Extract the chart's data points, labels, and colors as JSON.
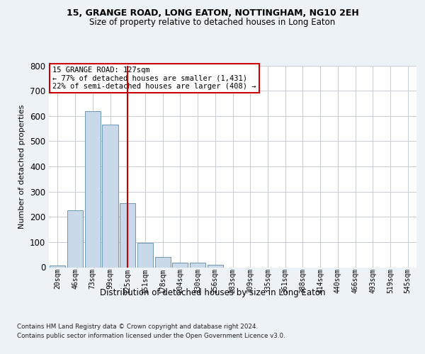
{
  "title1": "15, GRANGE ROAD, LONG EATON, NOTTINGHAM, NG10 2EH",
  "title2": "Size of property relative to detached houses in Long Eaton",
  "xlabel": "Distribution of detached houses by size in Long Eaton",
  "ylabel": "Number of detached properties",
  "categories": [
    "20sqm",
    "46sqm",
    "73sqm",
    "99sqm",
    "125sqm",
    "151sqm",
    "178sqm",
    "204sqm",
    "230sqm",
    "256sqm",
    "283sqm",
    "309sqm",
    "335sqm",
    "361sqm",
    "388sqm",
    "414sqm",
    "440sqm",
    "466sqm",
    "493sqm",
    "519sqm",
    "545sqm"
  ],
  "bar_heights": [
    8,
    225,
    620,
    565,
    253,
    96,
    42,
    18,
    18,
    10,
    0,
    0,
    0,
    0,
    0,
    0,
    0,
    0,
    0,
    0,
    0
  ],
  "bar_color": "#c9d9ea",
  "bar_edge_color": "#5a8aaa",
  "vline_color": "#cc0000",
  "property_idx": 4,
  "annotation_line1": "15 GRANGE ROAD: 127sqm",
  "annotation_line2": "← 77% of detached houses are smaller (1,431)",
  "annotation_line3": "22% of semi-detached houses are larger (408) →",
  "annotation_box_edge": "#cc0000",
  "ylim": [
    0,
    800
  ],
  "yticks": [
    0,
    100,
    200,
    300,
    400,
    500,
    600,
    700,
    800
  ],
  "grid_color": "#c8cdd4",
  "footer1": "Contains HM Land Registry data © Crown copyright and database right 2024.",
  "footer2": "Contains public sector information licensed under the Open Government Licence v3.0.",
  "fig_bg_color": "#edf2f7",
  "plot_bg_color": "#ffffff"
}
